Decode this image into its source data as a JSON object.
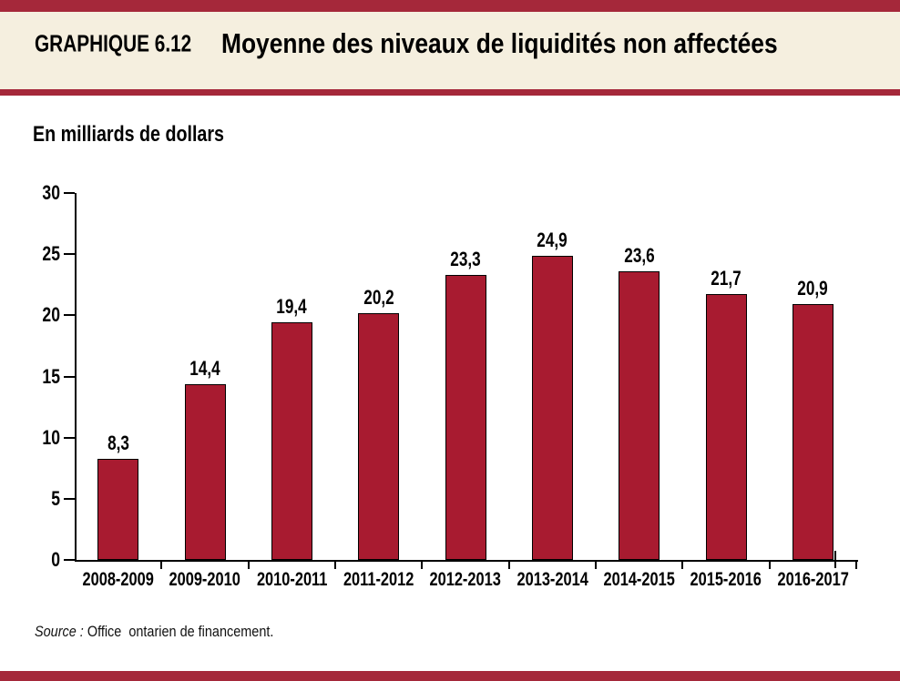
{
  "header": {
    "label": "GRAPHIQUE 6.12",
    "title": "Moyenne des niveaux de liquidités non affectées"
  },
  "units_label": "En milliards de dollars",
  "source": {
    "prefix": "Source : ",
    "text": "Office  ontarien de financement."
  },
  "colors": {
    "band_red": "#A5283A",
    "bar_fill": "#A81B30",
    "bar_border": "#000000",
    "header_bg": "#F5EFDF",
    "axis_black": "#000000"
  },
  "chart_data": {
    "type": "bar",
    "title": "Moyenne des niveaux de liquidités non affectées",
    "ylabel": "En milliards de dollars",
    "xlabel": "",
    "categories": [
      "2008-2009",
      "2009-2010",
      "2010-2011",
      "2011-2012",
      "2012-2013",
      "2013-2014",
      "2014-2015",
      "2015-2016",
      "2016-2017"
    ],
    "values": [
      8.3,
      14.4,
      19.4,
      20.2,
      23.3,
      24.9,
      23.6,
      21.7,
      20.9
    ],
    "value_labels": [
      "8,3",
      "14,4",
      "19,4",
      "20,2",
      "23,3",
      "24,9",
      "23,6",
      "21,7",
      "20,9"
    ],
    "ylim": [
      0,
      30
    ],
    "y_ticks": [
      0,
      5,
      10,
      15,
      20,
      25,
      30
    ],
    "grid": false,
    "legend": false,
    "source": "Source : Office ontarien de financement."
  }
}
